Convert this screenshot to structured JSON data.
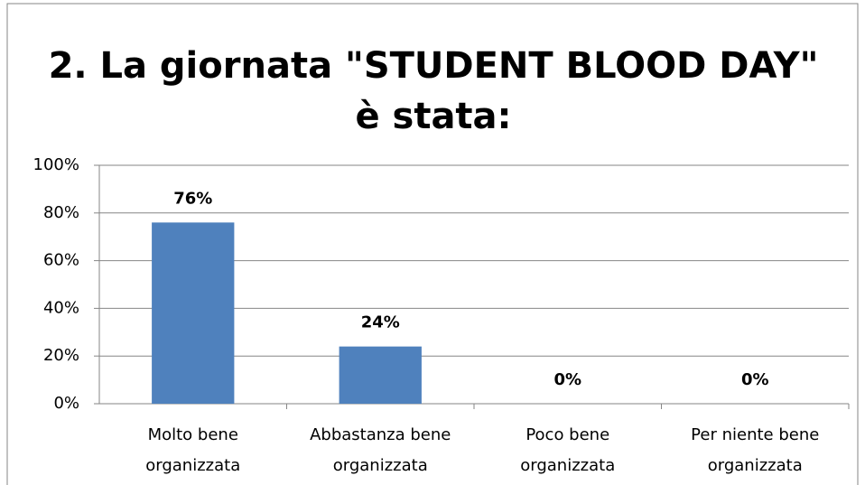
{
  "chart_data": {
    "type": "bar",
    "title": "2. La giornata \"STUDENT BLOOD DAY\" è stata:",
    "categories": [
      "Molto bene organizzata",
      "Abbastanza bene organizzata",
      "Poco bene organizzata",
      "Per niente bene organizzata"
    ],
    "values": [
      76,
      24,
      0,
      0
    ],
    "value_labels": [
      "76%",
      "24%",
      "0%",
      "0%"
    ],
    "color": "#4f81bd",
    "ylim": [
      0,
      100
    ],
    "yticks": [
      {
        "value": 0,
        "label": "0%"
      },
      {
        "value": 20,
        "label": "20%"
      },
      {
        "value": 40,
        "label": "40%"
      },
      {
        "value": 60,
        "label": "60%"
      },
      {
        "value": 80,
        "label": "80%"
      },
      {
        "value": 100,
        "label": "100%"
      }
    ],
    "grid": true
  }
}
